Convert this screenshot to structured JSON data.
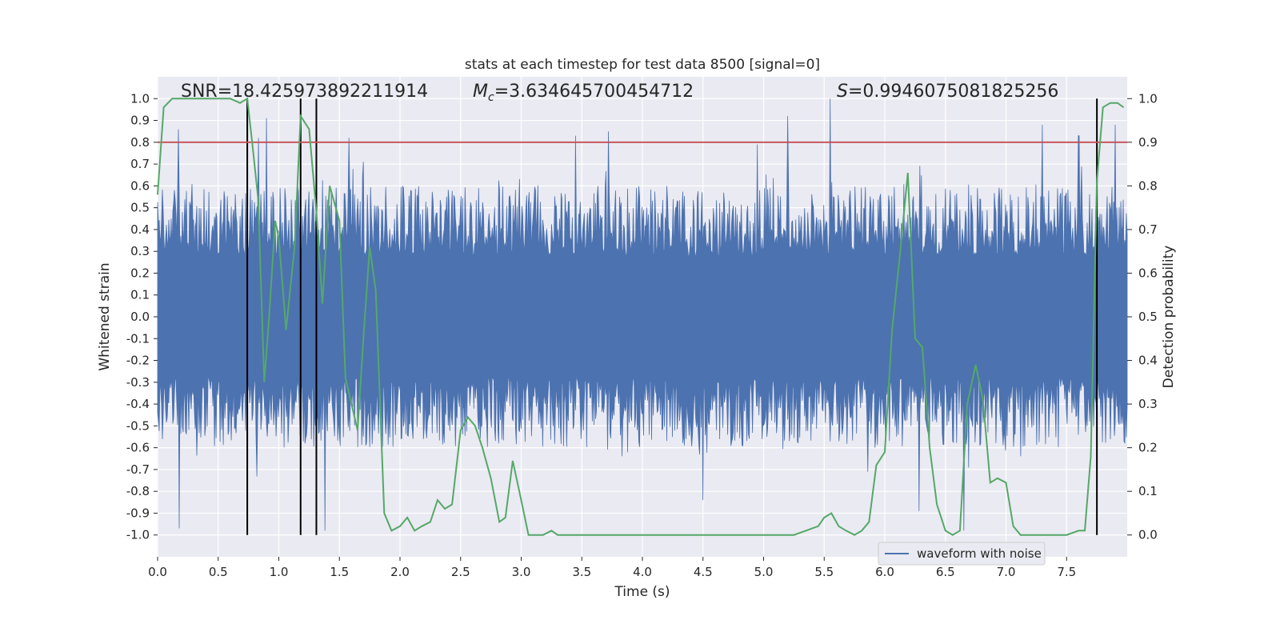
{
  "chart_data": {
    "type": "line",
    "title": "stats at each timestep for test data 8500 [signal=0]",
    "xlabel": "Time (s)",
    "ylabel": "Whitened strain",
    "y2label": "Detection probability",
    "xlim": [
      0.0,
      8.0
    ],
    "ylim": [
      -1.1,
      1.1
    ],
    "y2lim": [
      -0.05,
      1.05
    ],
    "xticks": [
      "0.0",
      "0.5",
      "1.0",
      "1.5",
      "2.0",
      "2.5",
      "3.0",
      "3.5",
      "4.0",
      "4.5",
      "5.0",
      "5.5",
      "6.0",
      "6.5",
      "7.0",
      "7.5"
    ],
    "yticks": [
      "1.0",
      "0.9",
      "0.8",
      "0.7",
      "0.6",
      "0.5",
      "0.4",
      "0.3",
      "0.2",
      "0.1",
      "0.0",
      "-0.1",
      "-0.2",
      "-0.3",
      "-0.4",
      "-0.5",
      "-0.6",
      "-0.7",
      "-0.8",
      "-0.9",
      "-1.0"
    ],
    "y2ticks": [
      "1.0",
      "0.9",
      "0.8",
      "0.7",
      "0.6",
      "0.5",
      "0.4",
      "0.3",
      "0.2",
      "0.1",
      "0.0"
    ],
    "annotations": {
      "snr": "SNR=18.425973892211914",
      "mc_symbol": "M",
      "mc_sub": "c",
      "mc_value": "=3.634645700454712",
      "s_symbol": "S",
      "s_value": "=0.9946075081825256"
    },
    "threshold": {
      "y2": 0.9,
      "color": "#c44e52"
    },
    "vertical_lines": [
      0.74,
      1.18,
      1.31,
      7.75
    ],
    "series": [
      {
        "name": "waveform with noise",
        "color": "#4c72b0",
        "axis": "left",
        "note": "whitened strain noise, ~8192 samples, amplitude mostly within ±0.6 with spikes to ±1.0",
        "spikes": [
          [
            0.17,
            0.86
          ],
          [
            0.18,
            -0.97
          ],
          [
            0.9,
            0.91
          ],
          [
            0.83,
            0.82
          ],
          [
            3.45,
            0.83
          ],
          [
            3.72,
            0.85
          ],
          [
            5.2,
            0.92
          ],
          [
            5.55,
            1.0
          ],
          [
            7.3,
            0.88
          ],
          [
            7.6,
            0.83
          ],
          [
            7.9,
            0.88
          ],
          [
            4.5,
            -0.84
          ],
          [
            1.38,
            -0.98
          ],
          [
            6.65,
            -0.98
          ],
          [
            6.28,
            -0.89
          ],
          [
            1.58,
            0.82
          ],
          [
            4.95,
            0.79
          ]
        ]
      },
      {
        "name": "detection probability",
        "color": "#55a868",
        "axis": "right",
        "x": [
          0.0,
          0.05,
          0.12,
          0.2,
          0.3,
          0.4,
          0.5,
          0.6,
          0.68,
          0.74,
          0.78,
          0.83,
          0.88,
          0.92,
          0.97,
          1.0,
          1.06,
          1.13,
          1.18,
          1.25,
          1.31,
          1.36,
          1.42,
          1.5,
          1.55,
          1.6,
          1.65,
          1.7,
          1.75,
          1.8,
          1.87,
          1.93,
          2.0,
          2.06,
          2.12,
          2.18,
          2.25,
          2.31,
          2.37,
          2.43,
          2.5,
          2.56,
          2.62,
          2.68,
          2.75,
          2.82,
          2.87,
          2.93,
          3.0,
          3.06,
          3.12,
          3.18,
          3.25,
          3.3,
          3.37,
          3.45,
          3.6,
          3.8,
          4.0,
          4.3,
          4.6,
          4.9,
          5.1,
          5.25,
          5.35,
          5.45,
          5.5,
          5.56,
          5.62,
          5.68,
          5.75,
          5.81,
          5.87,
          5.93,
          6.0,
          6.06,
          6.12,
          6.19,
          6.25,
          6.31,
          6.37,
          6.43,
          6.5,
          6.56,
          6.62,
          6.68,
          6.75,
          6.81,
          6.87,
          6.93,
          7.0,
          7.06,
          7.12,
          7.2,
          7.3,
          7.5,
          7.6,
          7.65,
          7.7,
          7.75,
          7.8,
          7.86,
          7.92,
          7.97
        ],
        "values": [
          0.78,
          0.98,
          1.0,
          1.0,
          1.0,
          1.0,
          1.0,
          1.0,
          0.99,
          1.0,
          0.9,
          0.77,
          0.35,
          0.5,
          0.72,
          0.68,
          0.47,
          0.66,
          0.96,
          0.93,
          0.74,
          0.53,
          0.8,
          0.72,
          0.36,
          0.3,
          0.24,
          0.46,
          0.66,
          0.56,
          0.05,
          0.01,
          0.02,
          0.04,
          0.01,
          0.02,
          0.03,
          0.08,
          0.06,
          0.07,
          0.24,
          0.27,
          0.25,
          0.2,
          0.13,
          0.03,
          0.04,
          0.17,
          0.08,
          0.0,
          0.0,
          0.0,
          0.01,
          0.0,
          0.0,
          0.0,
          0.0,
          0.0,
          0.0,
          0.0,
          0.0,
          0.0,
          0.0,
          0.0,
          0.01,
          0.02,
          0.04,
          0.05,
          0.02,
          0.01,
          0.0,
          0.01,
          0.03,
          0.16,
          0.19,
          0.47,
          0.63,
          0.83,
          0.45,
          0.43,
          0.2,
          0.07,
          0.01,
          0.0,
          0.01,
          0.3,
          0.39,
          0.31,
          0.12,
          0.13,
          0.12,
          0.02,
          0.0,
          0.0,
          0.0,
          0.0,
          0.01,
          0.01,
          0.18,
          0.81,
          0.98,
          0.99,
          0.99,
          0.98
        ]
      }
    ],
    "legend": {
      "label": "waveform with noise",
      "placement": "lower-right"
    }
  }
}
